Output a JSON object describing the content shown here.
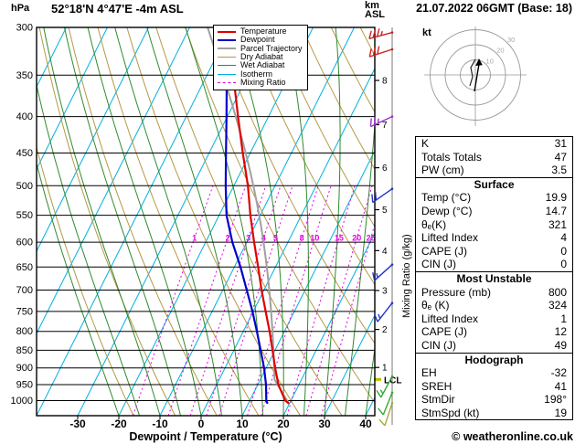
{
  "header": {
    "pressure_unit": "hPa",
    "station": "52°18'N 4°47'E -4m ASL",
    "datetime": "21.07.2022 06GMT (Base: 18)",
    "km_line1": "km",
    "km_line2": "ASL",
    "xlabel": "Dewpoint / Temperature (°C)",
    "mixing_ratio_axis": "Mixing Ratio (g/kg)",
    "copyright": "© weatheronline.co.uk"
  },
  "legend": {
    "items": [
      {
        "label": "Temperature",
        "color": "#e00000",
        "width": 2.5,
        "dashed": false
      },
      {
        "label": "Dewpoint",
        "color": "#0000cc",
        "width": 2.5,
        "dashed": false
      },
      {
        "label": "Parcel Trajectory",
        "color": "#a0a0a0",
        "width": 2.5,
        "dashed": false
      },
      {
        "label": "Dry Adiabat",
        "color": "#b49a46",
        "width": 1.5,
        "dashed": false
      },
      {
        "label": "Wet Adiabat",
        "color": "#2e8b2e",
        "width": 1.5,
        "dashed": false
      },
      {
        "label": "Isotherm",
        "color": "#00b0e0",
        "width": 1.5,
        "dashed": false
      },
      {
        "label": "Mixing Ratio",
        "color": "#e800e8",
        "width": 1.5,
        "dashed": true
      }
    ]
  },
  "axes": {
    "pressure_ticks": [
      300,
      350,
      400,
      450,
      500,
      550,
      600,
      650,
      700,
      750,
      800,
      850,
      900,
      950,
      1000
    ],
    "temp_ticks": [
      -30,
      -20,
      -10,
      0,
      10,
      20,
      30,
      40
    ],
    "km_ticks": [
      1,
      2,
      3,
      4,
      5,
      6,
      7,
      8
    ],
    "mixing_ratio_values": [
      1,
      2,
      3,
      4,
      5,
      8,
      10,
      15,
      20,
      25
    ],
    "lcl_label": "LCL"
  },
  "chart_data": {
    "type": "line",
    "variant": "skew-t-log-p",
    "title": "52°18'N 4°47'E -4m ASL",
    "x_axis": {
      "label": "Dewpoint / Temperature (°C)",
      "ticks": [
        -30,
        -20,
        -10,
        0,
        10,
        20,
        30,
        40
      ],
      "surface_range": [
        -40,
        42
      ]
    },
    "y_axis": {
      "label": "hPa",
      "scale": "log",
      "range": [
        300,
        1050
      ],
      "ticks": [
        300,
        350,
        400,
        450,
        500,
        550,
        600,
        650,
        700,
        750,
        800,
        850,
        900,
        950,
        1000
      ]
    },
    "km_axis": {
      "label": "km ASL",
      "ticks": [
        1,
        2,
        3,
        4,
        5,
        6,
        7,
        8
      ]
    },
    "mixing_ratio_lines_g_per_kg": [
      1,
      2,
      3,
      4,
      5,
      8,
      10,
      15,
      20,
      25
    ],
    "series": [
      {
        "name": "Temperature",
        "color": "#e00000",
        "pressure_hpa": [
          1010,
          1000,
          950,
          900,
          850,
          800,
          750,
          700,
          650,
          600,
          550,
          500,
          450,
          400,
          350,
          300
        ],
        "temp_c": [
          19.9,
          18.6,
          15.0,
          12.2,
          9.4,
          6.4,
          3.0,
          -0.6,
          -4.2,
          -8.2,
          -12.4,
          -16.6,
          -21.8,
          -27.4,
          -33.6,
          -40.2
        ]
      },
      {
        "name": "Dewpoint",
        "color": "#0000cc",
        "pressure_hpa": [
          1010,
          1000,
          950,
          900,
          850,
          800,
          750,
          700,
          650,
          600,
          550,
          500,
          450,
          400,
          350,
          300
        ],
        "temp_c": [
          14.7,
          14.0,
          12.0,
          9.5,
          6.5,
          3.3,
          -0.2,
          -4.2,
          -8.5,
          -13.5,
          -18.2,
          -22.0,
          -25.9,
          -30.2,
          -35.2,
          -40.6
        ]
      },
      {
        "name": "Parcel Trajectory",
        "color": "#a0a0a0",
        "derived_from": "surface parcel 19.9°C / 14.7°C at 1010 hPa"
      }
    ],
    "wind_barbs": [
      {
        "pressure_hpa": 305,
        "dir_deg": 255,
        "speed_kt": 35,
        "color": "#cc2222"
      },
      {
        "pressure_hpa": 322,
        "dir_deg": 252,
        "speed_kt": 30,
        "color": "#cc2222"
      },
      {
        "pressure_hpa": 400,
        "dir_deg": 245,
        "speed_kt": 25,
        "color": "#9933cc"
      },
      {
        "pressure_hpa": 505,
        "dir_deg": 235,
        "speed_kt": 20,
        "color": "#2233cc"
      },
      {
        "pressure_hpa": 645,
        "dir_deg": 228,
        "speed_kt": 15,
        "color": "#2233cc"
      },
      {
        "pressure_hpa": 730,
        "dir_deg": 218,
        "speed_kt": 15,
        "color": "#2233cc"
      },
      {
        "pressure_hpa": 925,
        "dir_deg": 208,
        "speed_kt": 15,
        "color": "#33aa33"
      },
      {
        "pressure_hpa": 975,
        "dir_deg": 202,
        "speed_kt": 10,
        "color": "#33aa33"
      },
      {
        "pressure_hpa": 1008,
        "dir_deg": 198,
        "speed_kt": 10,
        "color": "#aaaa33"
      }
    ],
    "lcl_label": "LCL"
  },
  "hodograph": {
    "unit": "kt",
    "ring_labels": [
      "10",
      "20",
      "30"
    ]
  },
  "panel": {
    "sections": [
      {
        "title": "",
        "rows": [
          [
            "K",
            "31"
          ],
          [
            "Totals Totals",
            "47"
          ],
          [
            "PW (cm)",
            "3.5"
          ]
        ]
      },
      {
        "title": "Surface",
        "rows": [
          [
            "Temp (°C)",
            "19.9"
          ],
          [
            "Dewp (°C)",
            "14.7"
          ],
          [
            "θₑ(K)",
            "321"
          ],
          [
            "Lifted Index",
            "4"
          ],
          [
            "CAPE (J)",
            "0"
          ],
          [
            "CIN (J)",
            "0"
          ]
        ]
      },
      {
        "title": "Most Unstable",
        "rows": [
          [
            "Pressure (mb)",
            "800"
          ],
          [
            "θₑ (K)",
            "324"
          ],
          [
            "Lifted Index",
            "1"
          ],
          [
            "CAPE (J)",
            "12"
          ],
          [
            "CIN (J)",
            "49"
          ]
        ]
      },
      {
        "title": "Hodograph",
        "rows": [
          [
            "EH",
            "-32"
          ],
          [
            "SREH",
            "41"
          ],
          [
            "StmDir",
            "198°"
          ],
          [
            "StmSpd (kt)",
            "19"
          ]
        ]
      }
    ]
  }
}
